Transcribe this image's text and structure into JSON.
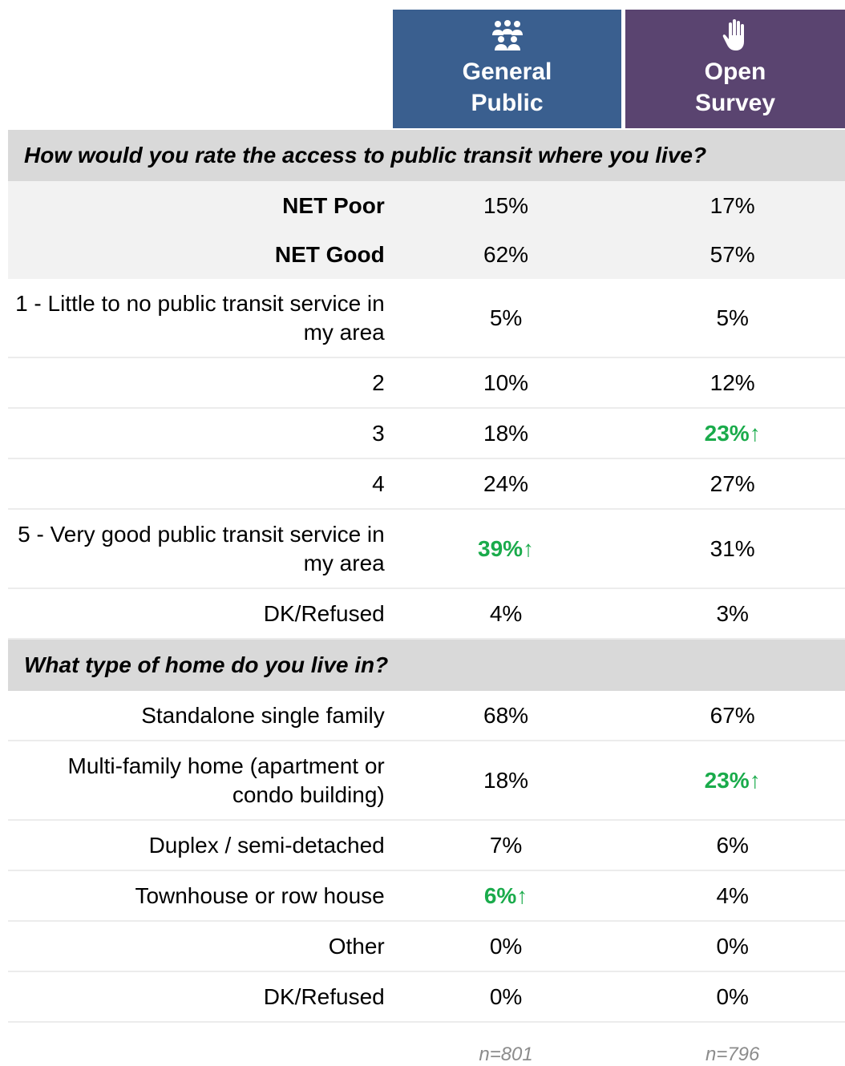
{
  "columns": [
    {
      "label": "General Public"
    },
    {
      "label": "Open Survey"
    }
  ],
  "sections": [
    {
      "question": "How would you rate the access to public transit where you live?",
      "rows": [
        {
          "label": "NET Poor",
          "bold": true,
          "shaded": true,
          "cells": [
            {
              "text": "15%"
            },
            {
              "text": "17%"
            }
          ]
        },
        {
          "label": "NET Good",
          "bold": true,
          "shaded": true,
          "cells": [
            {
              "text": "62%"
            },
            {
              "text": "57%"
            }
          ]
        },
        {
          "label": "1 - Little to no public transit service in my area",
          "cells": [
            {
              "text": "5%"
            },
            {
              "text": "5%"
            }
          ]
        },
        {
          "label": "2",
          "cells": [
            {
              "text": "10%"
            },
            {
              "text": "12%"
            }
          ]
        },
        {
          "label": "3",
          "cells": [
            {
              "text": "18%"
            },
            {
              "text": "23%↑",
              "highlight": true
            }
          ]
        },
        {
          "label": "4",
          "cells": [
            {
              "text": "24%"
            },
            {
              "text": "27%"
            }
          ]
        },
        {
          "label": "5 - Very good public transit service in my area",
          "cells": [
            {
              "text": "39%↑",
              "highlight": true
            },
            {
              "text": "31%"
            }
          ]
        },
        {
          "label": "DK/Refused",
          "cells": [
            {
              "text": "4%"
            },
            {
              "text": "3%"
            }
          ]
        }
      ]
    },
    {
      "question": "What type of home do you live in?",
      "rows": [
        {
          "label": "Standalone single family",
          "cells": [
            {
              "text": "68%"
            },
            {
              "text": "67%"
            }
          ]
        },
        {
          "label": "Multi-family home (apartment or condo building)",
          "cells": [
            {
              "text": "18%"
            },
            {
              "text": "23%↑",
              "highlight": true
            }
          ]
        },
        {
          "label": "Duplex / semi-detached",
          "cells": [
            {
              "text": "7%"
            },
            {
              "text": "6%"
            }
          ]
        },
        {
          "label": "Townhouse or row house",
          "cells": [
            {
              "text": "6%↑",
              "highlight": true
            },
            {
              "text": "4%"
            }
          ]
        },
        {
          "label": "Other",
          "cells": [
            {
              "text": "0%"
            },
            {
              "text": "0%"
            }
          ]
        },
        {
          "label": "DK/Refused",
          "cells": [
            {
              "text": "0%"
            },
            {
              "text": "0%"
            }
          ]
        }
      ]
    }
  ],
  "footer": [
    "n=801",
    "n=796"
  ]
}
